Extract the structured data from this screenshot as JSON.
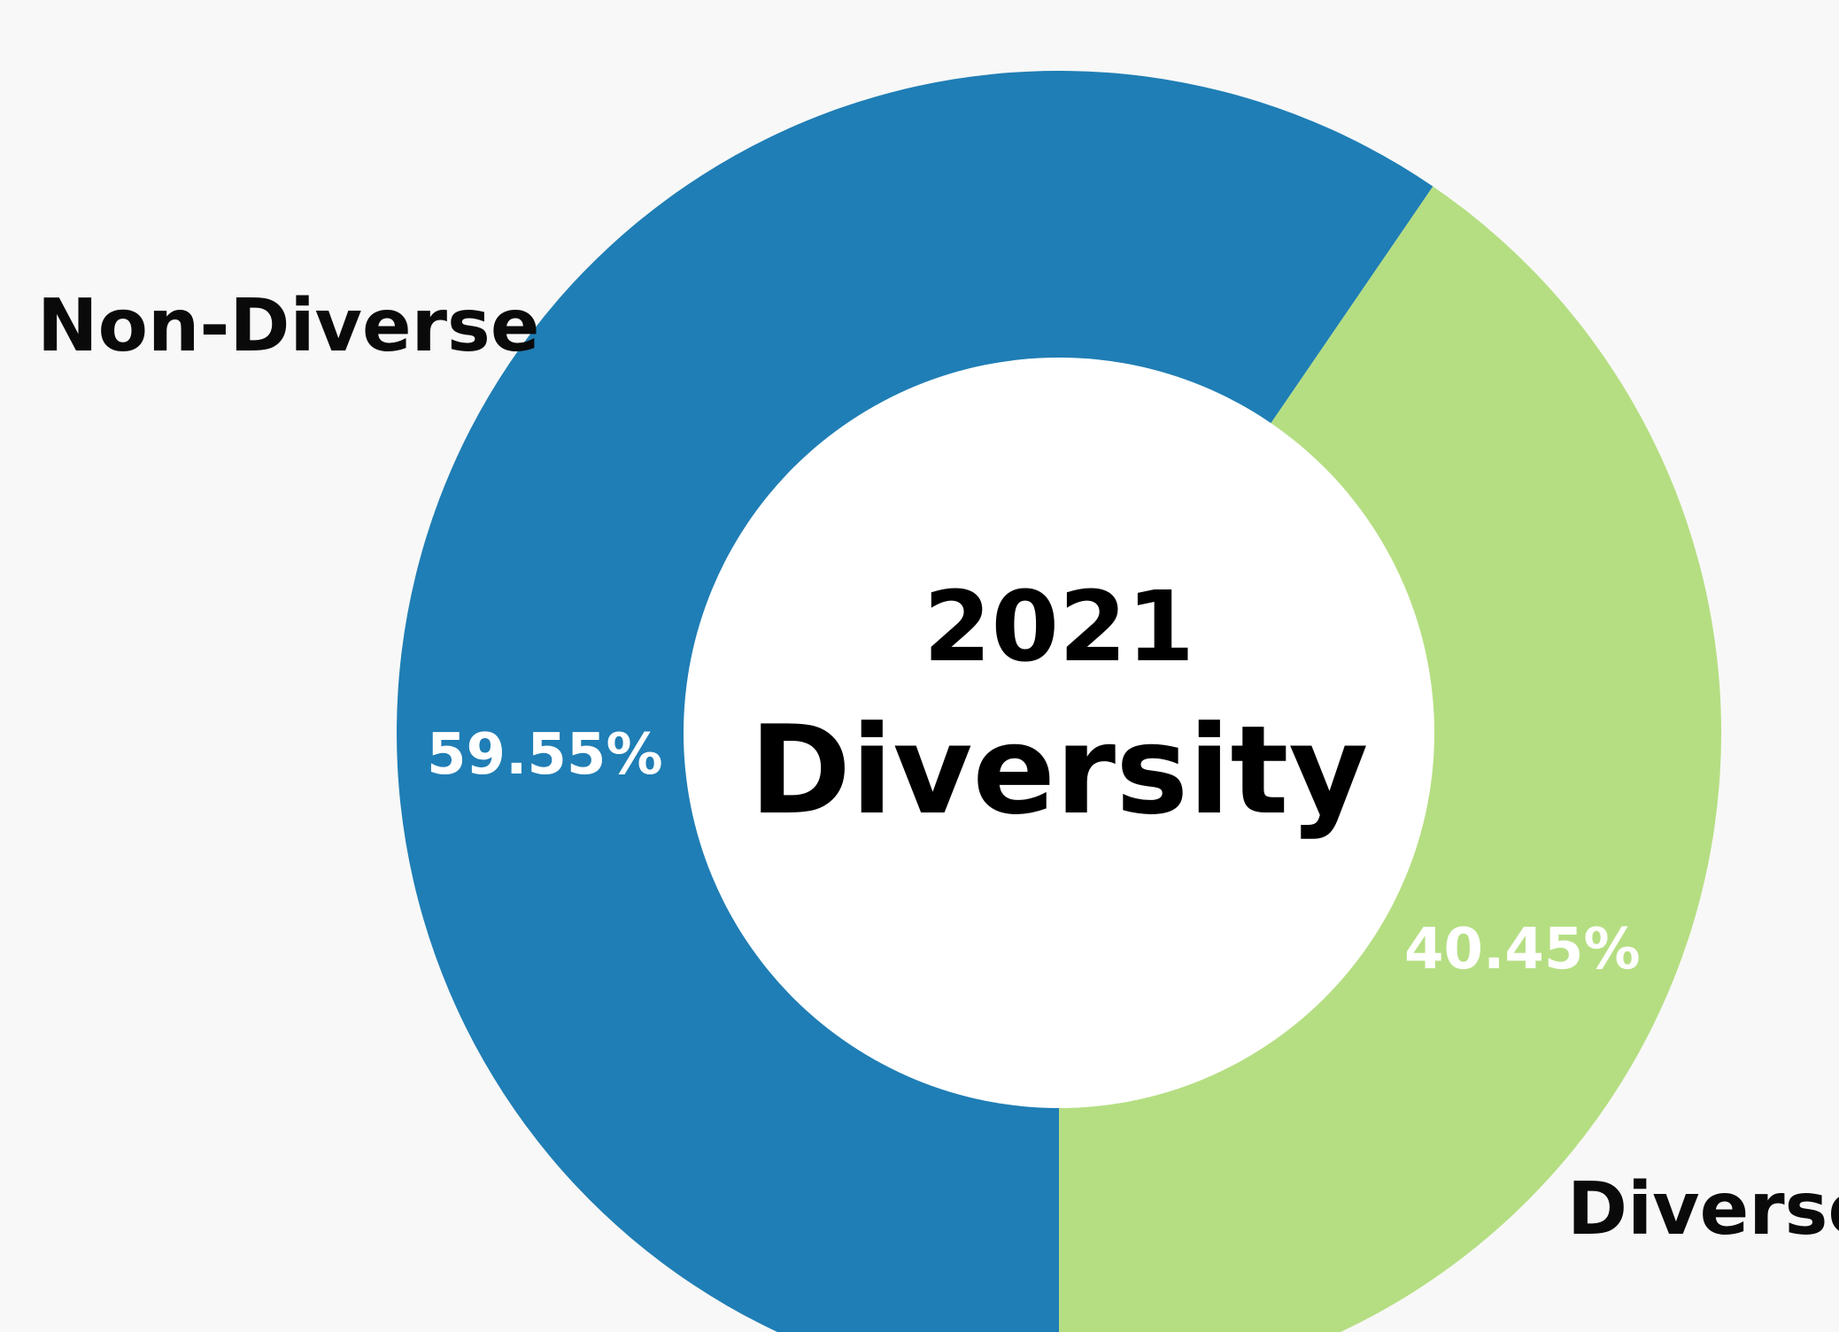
{
  "chart_data": {
    "type": "pie",
    "title": "2021 Diversity",
    "title_lines": [
      "2021",
      "Diversity"
    ],
    "slices": [
      {
        "label": "Non-Diverse",
        "value": 59.55,
        "value_label": "59.55%",
        "color": "#1f7eb5"
      },
      {
        "label": "Diverse",
        "value": 40.45,
        "value_label": "40.45%",
        "color": "#b5de82"
      }
    ],
    "donut": true,
    "background": "#f8f8f8"
  }
}
